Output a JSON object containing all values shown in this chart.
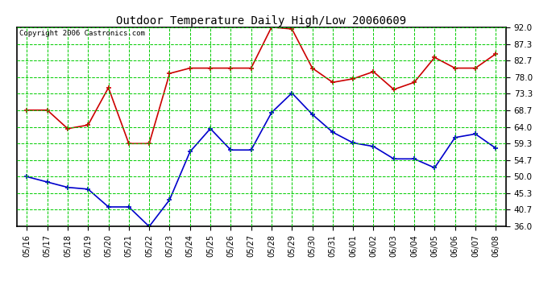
{
  "title": "Outdoor Temperature Daily High/Low 20060609",
  "copyright": "Copyright 2006 Castronics.com",
  "dates": [
    "05/16",
    "05/17",
    "05/18",
    "05/19",
    "05/20",
    "05/21",
    "05/22",
    "05/23",
    "05/24",
    "05/25",
    "05/26",
    "05/27",
    "05/28",
    "05/29",
    "05/30",
    "05/31",
    "06/01",
    "06/02",
    "06/03",
    "06/04",
    "06/05",
    "06/06",
    "06/07",
    "06/08"
  ],
  "high": [
    68.7,
    68.7,
    63.5,
    64.5,
    75.0,
    59.3,
    59.3,
    79.0,
    80.5,
    80.5,
    80.5,
    80.5,
    92.0,
    91.5,
    80.5,
    76.5,
    77.5,
    79.5,
    74.5,
    76.5,
    83.5,
    80.5,
    80.5,
    84.5
  ],
  "low": [
    50.0,
    48.5,
    47.0,
    46.5,
    41.5,
    41.5,
    36.0,
    43.5,
    57.0,
    63.5,
    57.5,
    57.5,
    68.0,
    73.5,
    67.5,
    62.5,
    59.5,
    58.5,
    55.0,
    55.0,
    52.5,
    61.0,
    62.0,
    58.0
  ],
  "high_color": "#cc0000",
  "low_color": "#0000cc",
  "bg_color": "#ffffff",
  "grid_color": "#00cc00",
  "ylim_min": 36.0,
  "ylim_max": 92.0,
  "yticks": [
    36.0,
    40.7,
    45.3,
    50.0,
    54.7,
    59.3,
    64.0,
    68.7,
    73.3,
    78.0,
    82.7,
    87.3,
    92.0
  ]
}
